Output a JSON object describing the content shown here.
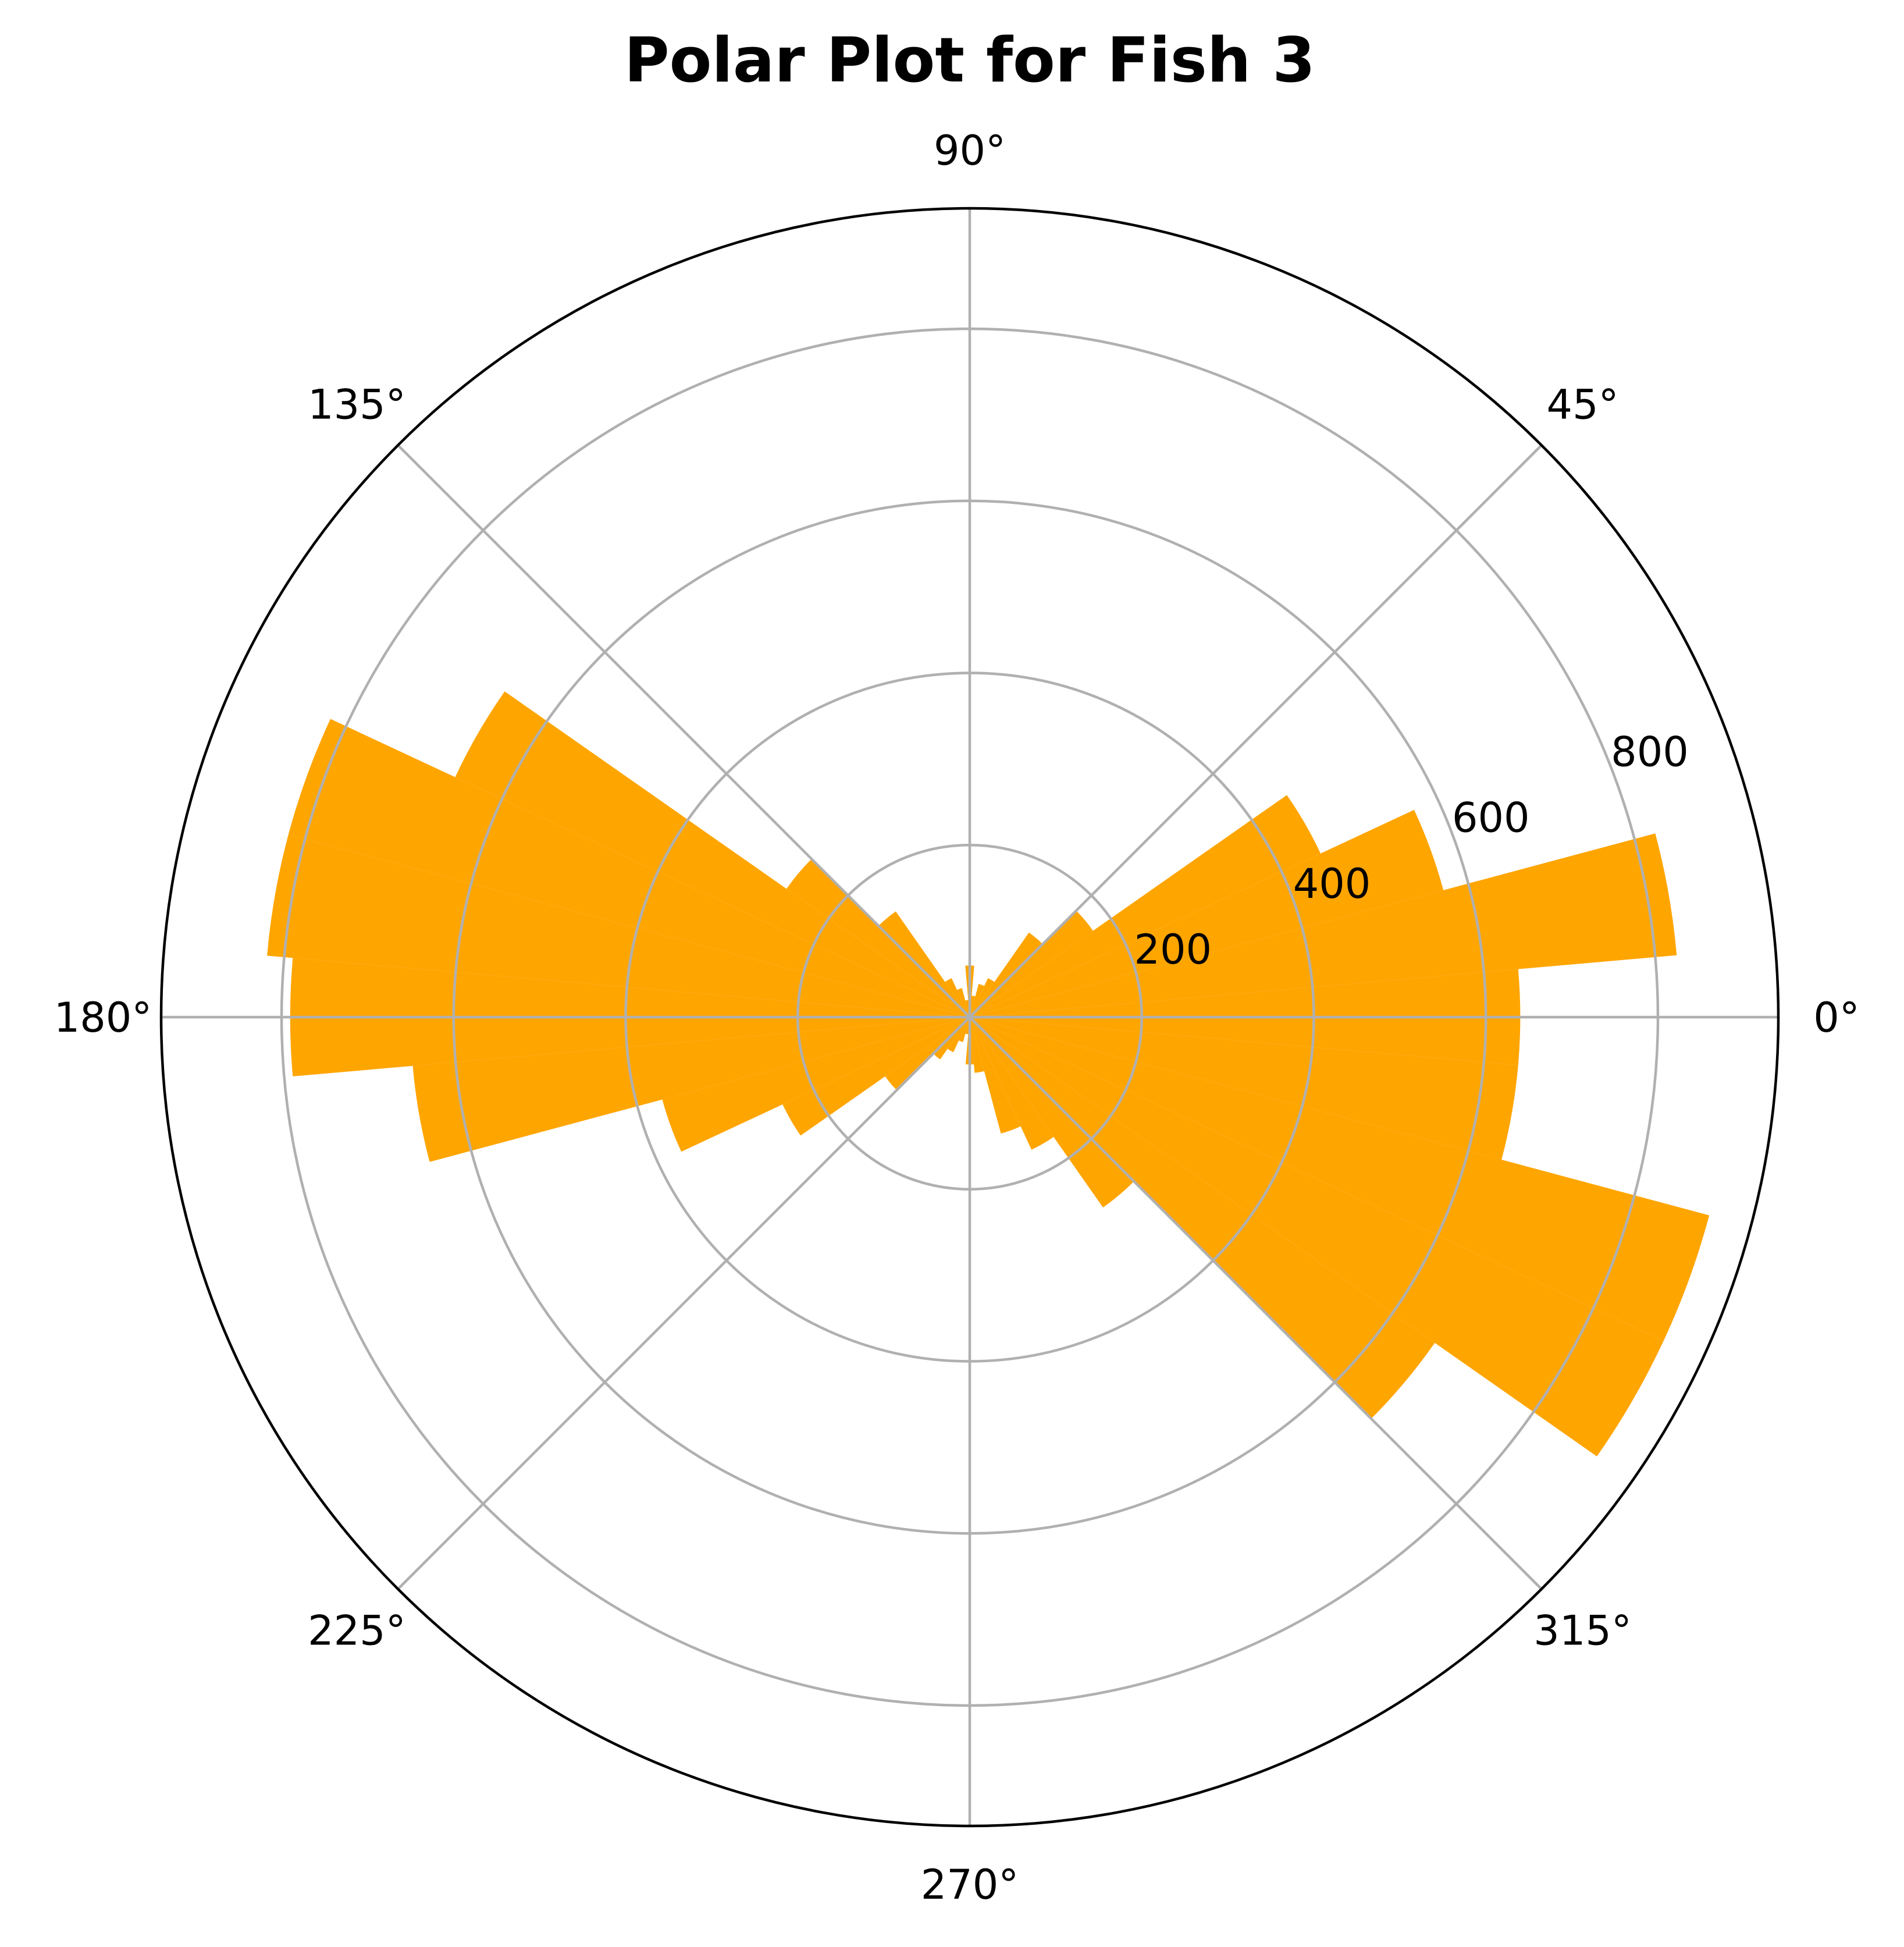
{
  "chart_data": {
    "type": "bar",
    "subtype": "polar",
    "title": "Polar Plot for Fish 3",
    "bar_color": "#ffa500",
    "angle_unit": "degrees",
    "bin_width_deg": 10,
    "angles": [
      0,
      10,
      20,
      30,
      40,
      50,
      60,
      70,
      80,
      90,
      100,
      110,
      120,
      130,
      140,
      150,
      160,
      170,
      180,
      190,
      200,
      210,
      220,
      230,
      240,
      250,
      260,
      270,
      280,
      290,
      300,
      310,
      320,
      330,
      340,
      350
    ],
    "values": [
      640,
      825,
      570,
      450,
      175,
      120,
      50,
      40,
      25,
      60,
      20,
      35,
      50,
      150,
      260,
      660,
      820,
      820,
      790,
      650,
      370,
      240,
      120,
      60,
      45,
      30,
      20,
      55,
      65,
      140,
      170,
      270,
      660,
      890,
      890,
      640
    ],
    "r_ticks": [
      200,
      400,
      600,
      800
    ],
    "r_tick_labels": [
      "200",
      "400",
      "600",
      "800"
    ],
    "rlim": [
      0,
      940
    ],
    "theta_ticks": [
      0,
      45,
      90,
      135,
      180,
      225,
      270,
      315
    ],
    "theta_tick_labels": [
      "0°",
      "45°",
      "90°",
      "135°",
      "180°",
      "225°",
      "270°",
      "315°"
    ],
    "grid": true
  }
}
